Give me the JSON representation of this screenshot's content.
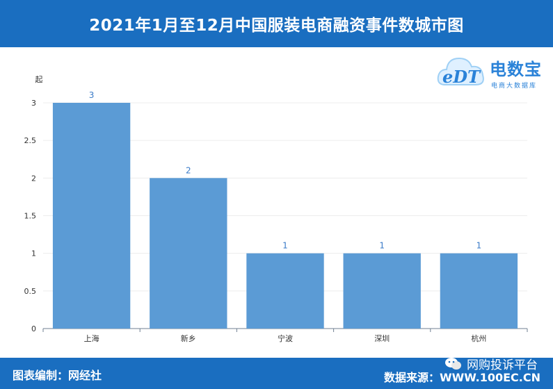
{
  "header": {
    "title": "2021年1月至12月中国服装电商融资事件数城市图"
  },
  "logo": {
    "brand": "电数宝",
    "sub": "电商大数据库",
    "mark": "eDT"
  },
  "footer": {
    "editor": "图表编制：网经社",
    "source": "数据来源：WWW.100EC.CN",
    "wechat": "网购投诉平台"
  },
  "colors": {
    "header": "#1a6ec0",
    "bar": "#5b9bd5",
    "label": "#3a7bc8"
  },
  "chart_data": {
    "type": "bar",
    "ylabel": "起",
    "categories": [
      "上海",
      "新乡",
      "宁波",
      "深圳",
      "杭州"
    ],
    "values": [
      3,
      2,
      1,
      1,
      1
    ],
    "ylim": [
      0,
      3
    ],
    "yticks": [
      "0",
      "0.5",
      "1",
      "1.5",
      "2",
      "2.5",
      "3"
    ],
    "grid": true
  }
}
